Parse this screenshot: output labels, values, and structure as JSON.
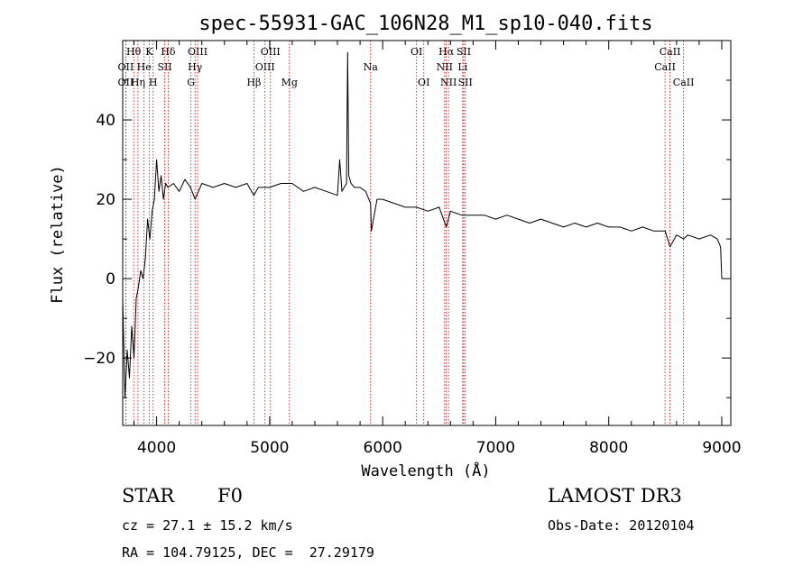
{
  "chart_data": {
    "type": "line",
    "title": "spec-55931-GAC_106N28_M1_sp10-040.fits",
    "xlabel": "Wavelength (Å)",
    "ylabel": "Flux (relative)",
    "xlim": [
      3700,
      9080
    ],
    "ylim": [
      -37,
      60
    ],
    "xticks": [
      4000,
      5000,
      6000,
      7000,
      8000,
      9000
    ],
    "xtick_labels": [
      "4000",
      "5000",
      "6000",
      "7000",
      "8000",
      "9000"
    ],
    "yticks": [
      -20,
      0,
      20,
      40
    ],
    "ytick_labels": [
      "−20",
      "0",
      "20",
      "40"
    ],
    "series": [
      {
        "name": "flux",
        "x": [
          3700,
          3720,
          3740,
          3760,
          3780,
          3800,
          3820,
          3840,
          3860,
          3880,
          3900,
          3920,
          3940,
          3960,
          3980,
          4000,
          4020,
          4040,
          4060,
          4080,
          4100,
          4150,
          4200,
          4250,
          4300,
          4340,
          4400,
          4500,
          4600,
          4700,
          4800,
          4861,
          4900,
          5000,
          5100,
          5200,
          5300,
          5400,
          5500,
          5600,
          5620,
          5640,
          5660,
          5680,
          5690,
          5700,
          5720,
          5750,
          5800,
          5850,
          5893,
          5900,
          5950,
          6000,
          6100,
          6200,
          6300,
          6400,
          6500,
          6563,
          6600,
          6700,
          6800,
          6900,
          7000,
          7100,
          7200,
          7300,
          7400,
          7500,
          7600,
          7700,
          7800,
          7900,
          8000,
          8100,
          8200,
          8300,
          8400,
          8500,
          8542,
          8600,
          8662,
          8700,
          8800,
          8900,
          8960,
          8990,
          9000
        ],
        "values": [
          -5,
          -30,
          -18,
          -25,
          -12,
          -20,
          -5,
          -2,
          2,
          0,
          5,
          15,
          10,
          17,
          20,
          30,
          22,
          26,
          20,
          24,
          23,
          24,
          22,
          25,
          23,
          20,
          24,
          23,
          24,
          23,
          24,
          21,
          23,
          23,
          24,
          24,
          22,
          23,
          22,
          21,
          30,
          22,
          23,
          24,
          57,
          26,
          24,
          23,
          23,
          22,
          19,
          12,
          20,
          20,
          19,
          18,
          18,
          17,
          18,
          13,
          17,
          16,
          16,
          16,
          15,
          16,
          15,
          14,
          15,
          14,
          13,
          14,
          13,
          14,
          13,
          13,
          12,
          13,
          12,
          12,
          8,
          11,
          10,
          11,
          10,
          11,
          10,
          8,
          0
        ]
      }
    ],
    "lines": [
      {
        "label": "Hθ",
        "x": 3797,
        "row": 0
      },
      {
        "label": "OII",
        "x": 3727,
        "row": 1
      },
      {
        "label": "OII",
        "x": 3727,
        "row": 2
      },
      {
        "label": "K",
        "x": 3934,
        "row": 0
      },
      {
        "label": "He",
        "x": 3889,
        "row": 1
      },
      {
        "label": "Hη",
        "x": 3835,
        "row": 2
      },
      {
        "label": "Hδ",
        "x": 4102,
        "row": 0
      },
      {
        "label": "SII",
        "x": 4072,
        "row": 1
      },
      {
        "label": "H",
        "x": 3969,
        "row": 2
      },
      {
        "label": "OIII",
        "x": 4363,
        "row": 0
      },
      {
        "label": "Hγ",
        "x": 4340,
        "row": 1
      },
      {
        "label": "G",
        "x": 4304,
        "row": 2
      },
      {
        "label": "Hβ",
        "x": 4861,
        "row": 2
      },
      {
        "label": "OIII",
        "x": 5007,
        "row": 0
      },
      {
        "label": "OIII",
        "x": 4959,
        "row": 1
      },
      {
        "label": "Mg",
        "x": 5175,
        "row": 2
      },
      {
        "label": "Na",
        "x": 5893,
        "row": 1
      },
      {
        "label": "OI",
        "x": 6300,
        "row": 0
      },
      {
        "label": "OI",
        "x": 6364,
        "row": 2
      },
      {
        "label": "Hα",
        "x": 6563,
        "row": 0
      },
      {
        "label": "NII",
        "x": 6548,
        "row": 1
      },
      {
        "label": "NII",
        "x": 6583,
        "row": 2
      },
      {
        "label": "SII",
        "x": 6717,
        "row": 0
      },
      {
        "label": "Li",
        "x": 6708,
        "row": 1
      },
      {
        "label": "SII",
        "x": 6731,
        "row": 2
      },
      {
        "label": "CaII",
        "x": 8542,
        "row": 0
      },
      {
        "label": "CaII",
        "x": 8498,
        "row": 1
      },
      {
        "label": "CaII",
        "x": 8662,
        "row": 2
      }
    ]
  },
  "info": {
    "class_label": "STAR",
    "subclass": "F0",
    "redshift": "cz = 27.1 ± 15.2 km/s",
    "coords": "RA = 104.79125, DEC =  27.29179",
    "survey": "LAMOST DR3",
    "obs_date": "Obs-Date: 20120104"
  }
}
